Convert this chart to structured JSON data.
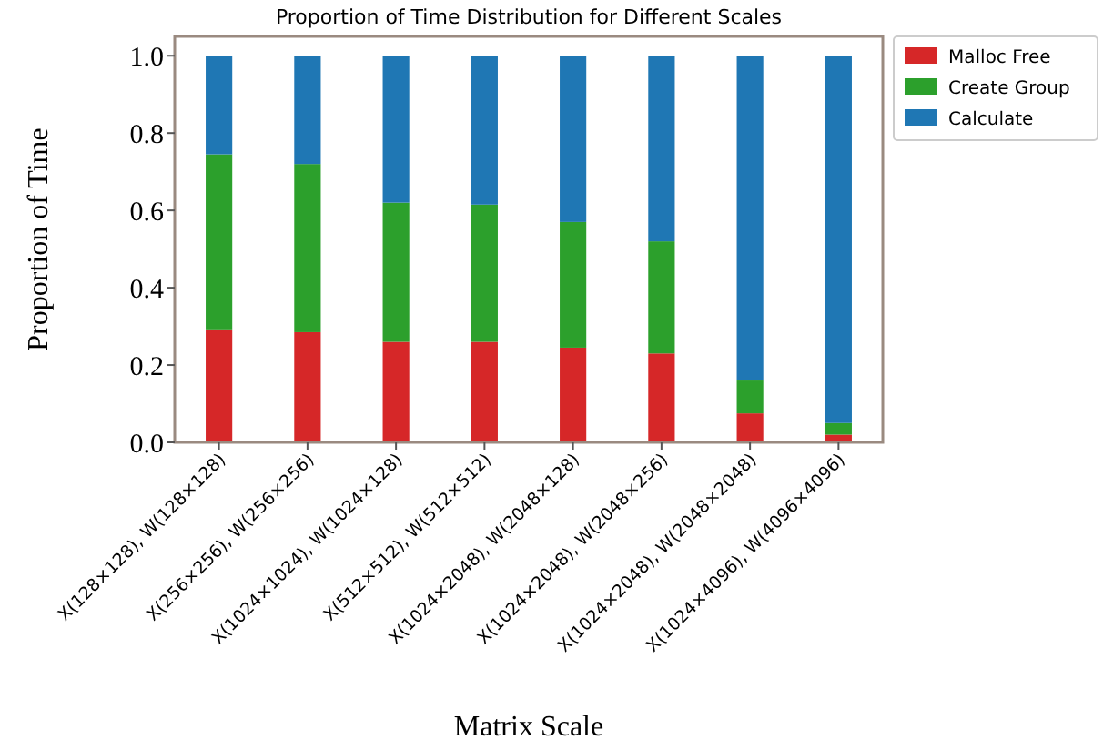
{
  "chart_data": {
    "type": "bar",
    "title": "Proportion of Time Distribution for Different Scales",
    "xlabel": "Matrix Scale",
    "ylabel": "Proportion of Time",
    "categories": [
      "X(128×128), W(128×128)",
      "X(256×256), W(256×256)",
      "X(1024×1024), W(1024×128)",
      "X(512×512), W(512×512)",
      "X(1024×2048), W(2048×128)",
      "X(1024×2048), W(2048×256)",
      "X(1024×2048), W(2048×2048)",
      "X(1024×4096), W(4096×4096)"
    ],
    "series": [
      {
        "name": "Malloc Free",
        "color": "#d62728",
        "values": [
          0.29,
          0.285,
          0.26,
          0.26,
          0.245,
          0.23,
          0.075,
          0.02
        ]
      },
      {
        "name": "Create Group",
        "color": "#2ca02c",
        "values": [
          0.455,
          0.435,
          0.36,
          0.355,
          0.325,
          0.29,
          0.085,
          0.03
        ]
      },
      {
        "name": "Calculate",
        "color": "#1f77b4",
        "values": [
          0.255,
          0.28,
          0.38,
          0.385,
          0.43,
          0.48,
          0.84,
          0.95
        ]
      }
    ],
    "stacked": true,
    "ylim": [
      0,
      1.05
    ],
    "yticks": [
      {
        "value": 0,
        "label": "0.0"
      },
      {
        "value": 0.2,
        "label": "0.2"
      },
      {
        "value": 0.4,
        "label": "0.4"
      },
      {
        "value": 0.6,
        "label": "0.6"
      },
      {
        "value": 0.8,
        "label": "0.8"
      },
      {
        "value": 1,
        "label": "1.0"
      }
    ],
    "legend": "top right",
    "grid": false
  }
}
